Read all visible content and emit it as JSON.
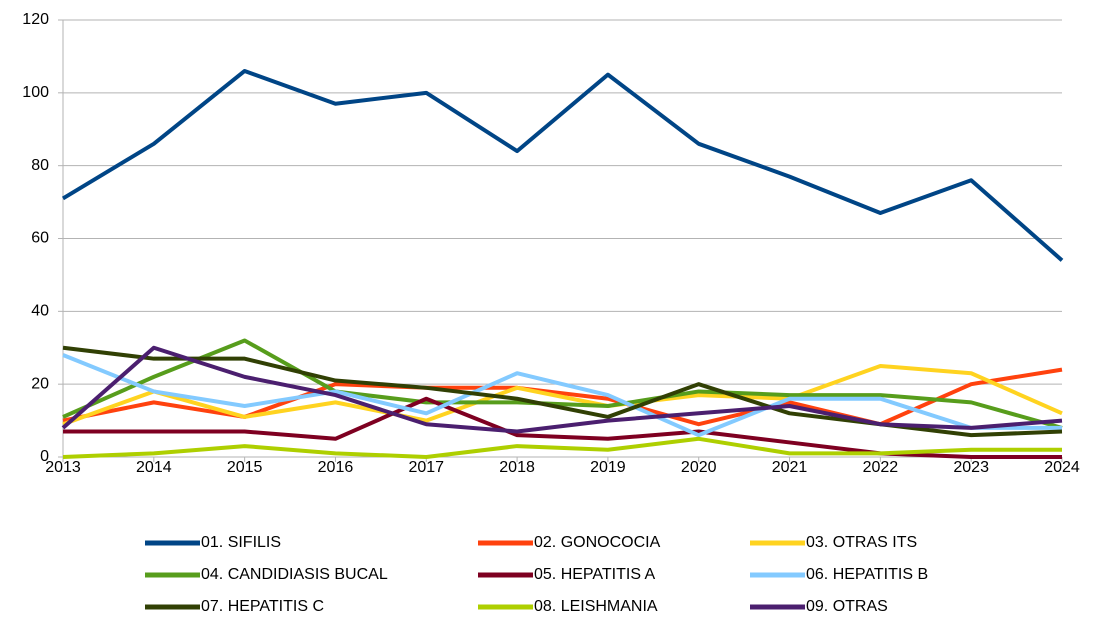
{
  "chart_data": {
    "type": "line",
    "x": [
      2013,
      2014,
      2015,
      2016,
      2017,
      2018,
      2019,
      2020,
      2021,
      2022,
      2023,
      2024
    ],
    "xlim": [
      2013,
      2024
    ],
    "xticks": [
      2013,
      2014,
      2015,
      2016,
      2017,
      2018,
      2019,
      2020,
      2021,
      2022,
      2023,
      2024
    ],
    "ylim": [
      0,
      120
    ],
    "yticks": [
      0,
      20,
      40,
      60,
      80,
      100,
      120
    ],
    "grid": true,
    "legend": "bottom",
    "series": [
      {
        "name": "01. SIFILIS",
        "color": "#004586",
        "values": [
          71,
          86,
          106,
          97,
          100,
          84,
          105,
          86,
          77,
          67,
          76,
          54
        ]
      },
      {
        "name": "02. GONOCOCIA",
        "color": "#ff420e",
        "values": [
          10,
          15,
          11,
          20,
          19,
          19,
          16,
          9,
          15,
          9,
          20,
          24
        ]
      },
      {
        "name": "03. OTRAS ITS",
        "color": "#ffd320",
        "values": [
          9,
          18,
          11,
          15,
          10,
          19,
          14,
          17,
          16,
          25,
          23,
          12
        ]
      },
      {
        "name": "04. CANDIDIASIS BUCAL",
        "color": "#579d1c",
        "values": [
          11,
          22,
          32,
          18,
          15,
          15,
          14,
          18,
          17,
          17,
          15,
          8
        ]
      },
      {
        "name": "05. HEPATITIS A",
        "color": "#7e0021",
        "values": [
          7,
          7,
          7,
          5,
          16,
          6,
          5,
          7,
          4,
          1,
          0,
          0
        ]
      },
      {
        "name": "06. HEPATITIS B",
        "color": "#83caff",
        "values": [
          28,
          18,
          14,
          18,
          12,
          23,
          17,
          6,
          16,
          16,
          8,
          8
        ]
      },
      {
        "name": "07. HEPATITIS C",
        "color": "#314004",
        "values": [
          30,
          27,
          27,
          21,
          19,
          16,
          11,
          20,
          12,
          9,
          6,
          7
        ]
      },
      {
        "name": "08. LEISHMANIA",
        "color": "#aecf00",
        "values": [
          0,
          1,
          3,
          1,
          0,
          3,
          2,
          5,
          1,
          1,
          2,
          2
        ]
      },
      {
        "name": "09. OTRAS",
        "color": "#4b1f6f",
        "values": [
          8,
          30,
          22,
          17,
          9,
          7,
          10,
          12,
          14,
          9,
          8,
          10
        ]
      }
    ]
  }
}
